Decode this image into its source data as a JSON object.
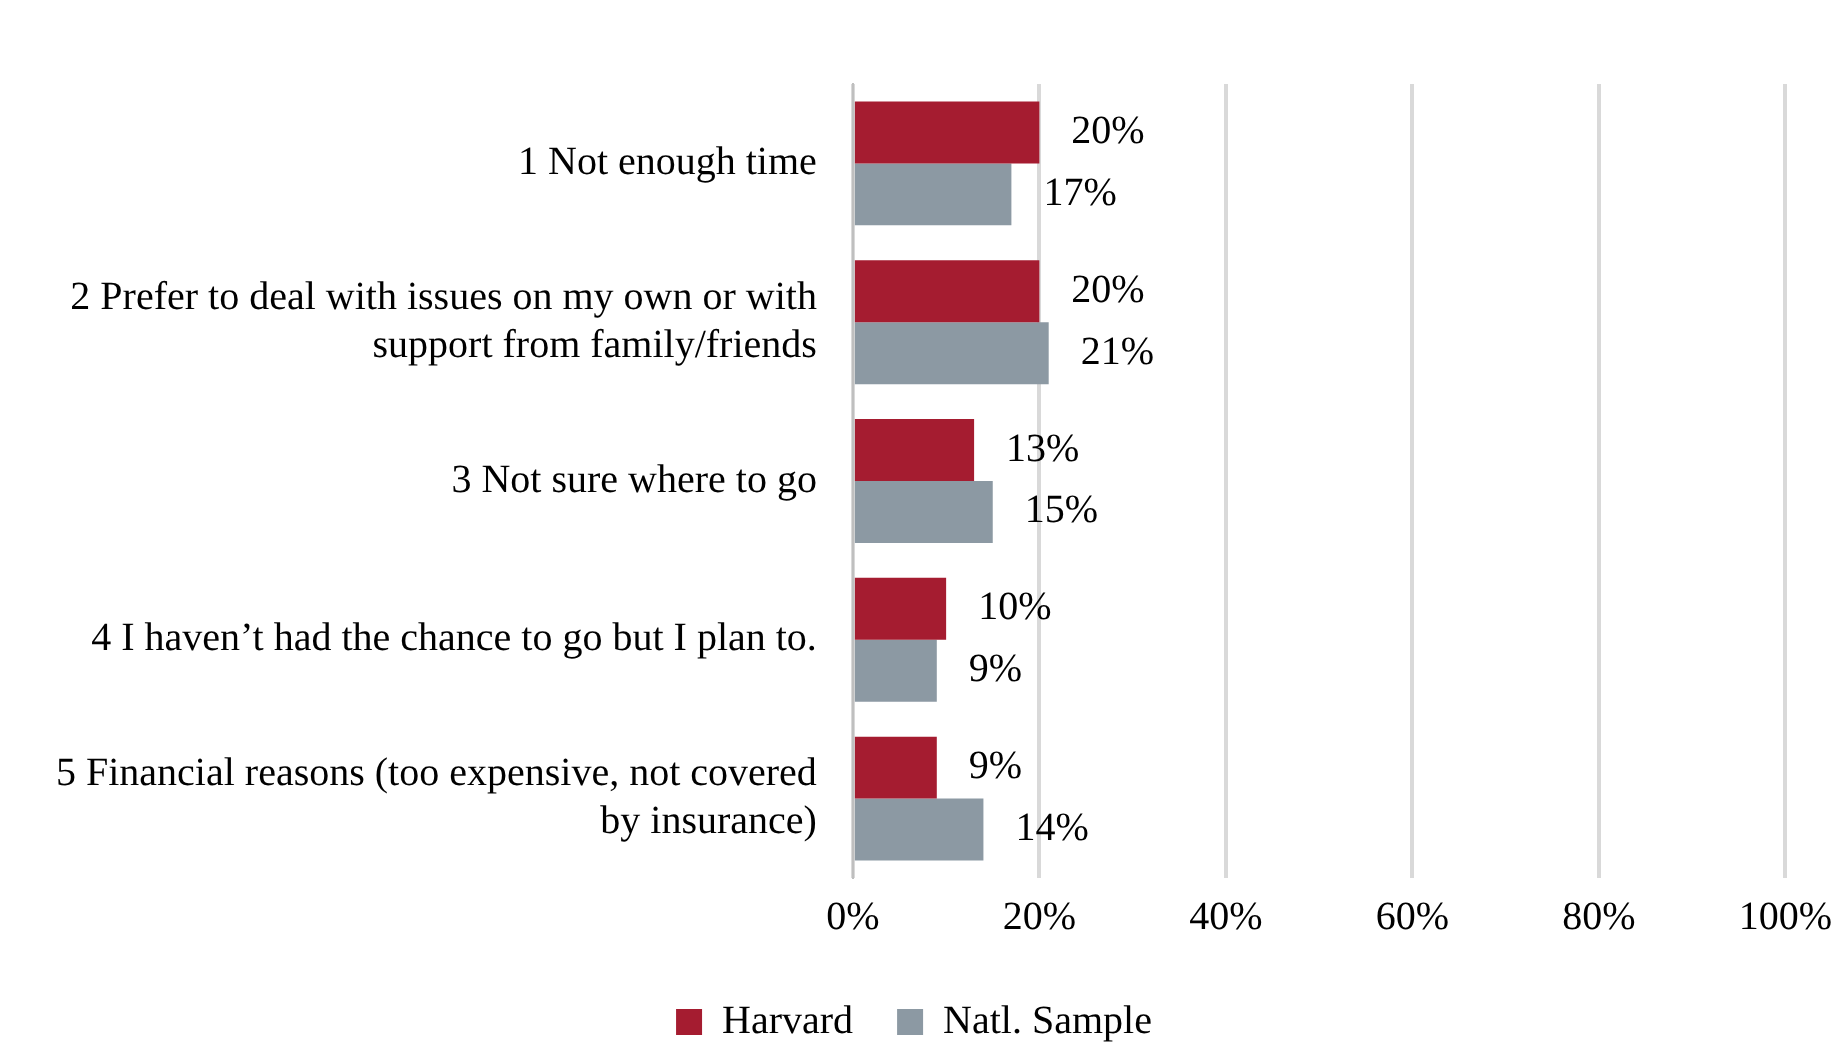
{
  "chart_data": {
    "type": "bar",
    "orientation": "horizontal",
    "categories": [
      "1 Not enough time",
      "2 Prefer to deal with issues on my own or with support from family/friends",
      "3 Not sure where to go",
      "4 I haven’t had the chance to go but I plan to.",
      "5 Financial reasons (too expensive, not covered by insurance)"
    ],
    "series": [
      {
        "name": "Harvard",
        "color": "#a51c30",
        "values": [
          20,
          20,
          13,
          10,
          9
        ],
        "value_labels": [
          "20%",
          "20%",
          "13%",
          "10%",
          "9%"
        ]
      },
      {
        "name": "Natl. Sample",
        "color": "#8c99a3",
        "values": [
          17,
          21,
          15,
          9,
          14
        ],
        "value_labels": [
          "17%",
          "21%",
          "15%",
          "9%",
          "14%"
        ]
      }
    ],
    "xlim": [
      0,
      100
    ],
    "xticks": [
      {
        "value": 0,
        "label": "0%"
      },
      {
        "value": 20,
        "label": "20%"
      },
      {
        "value": 40,
        "label": "40%"
      },
      {
        "value": 60,
        "label": "60%"
      },
      {
        "value": 80,
        "label": "80%"
      },
      {
        "value": 100,
        "label": "100%"
      }
    ],
    "grid": "x",
    "legend": "bottom"
  }
}
